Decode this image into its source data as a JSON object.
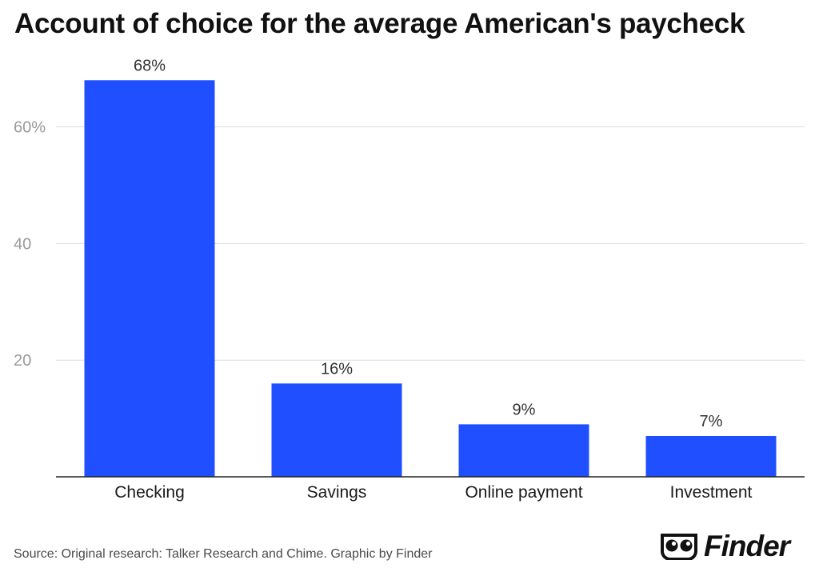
{
  "title": "Account of choice for the average American's paycheck",
  "source": "Source: Original research: Talker Research and Chime. Graphic by Finder",
  "brand": {
    "name": "Finder",
    "logo_icon": "eyes-icon"
  },
  "colors": {
    "bar": "#1f4fff",
    "grid": "#dddddd",
    "axis": "#222222",
    "tick": "#9a9a9a",
    "label": "#333333"
  },
  "chart_data": {
    "type": "bar",
    "title": "Account of choice for the average American's paycheck",
    "categories": [
      "Checking",
      "Savings",
      "Online payment",
      "Investment"
    ],
    "values": [
      68,
      16,
      9,
      7
    ],
    "value_labels": [
      "68%",
      "16%",
      "9%",
      "7%"
    ],
    "yticks": [
      20,
      40,
      60
    ],
    "ytick_labels": [
      "20",
      "40",
      "60%"
    ],
    "ylim": [
      0,
      74
    ],
    "xlabel": "",
    "ylabel": "",
    "grid": true,
    "legend": "none"
  }
}
